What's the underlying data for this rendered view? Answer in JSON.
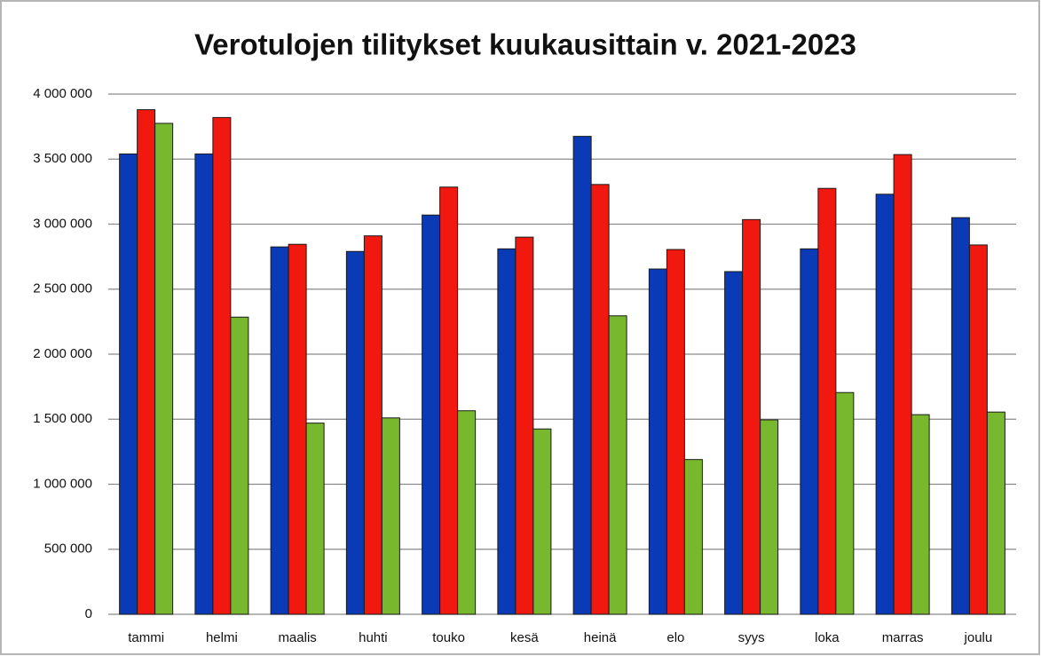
{
  "chart_data": {
    "type": "bar",
    "title": "Verotulojen tilitykset kuukausittain v. 2021-2023",
    "categories": [
      "tammi",
      "helmi",
      "maalis",
      "huhti",
      "touko",
      "kesä",
      "heinä",
      "elo",
      "syys",
      "loka",
      "marras",
      "joulu"
    ],
    "series": [
      {
        "color": "#0a3ab5",
        "values": [
          3540000,
          3540000,
          2825000,
          2790000,
          3070000,
          2810000,
          3675000,
          2655000,
          2635000,
          2810000,
          3230000,
          3050000
        ]
      },
      {
        "color": "#f0180f",
        "values": [
          3880000,
          3820000,
          2845000,
          2910000,
          3285000,
          2900000,
          3305000,
          2805000,
          3035000,
          3275000,
          3535000,
          2840000
        ]
      },
      {
        "color": "#77b82e",
        "values": [
          3775000,
          2285000,
          1470000,
          1510000,
          1565000,
          1425000,
          2295000,
          1190000,
          1495000,
          1705000,
          1535000,
          1555000
        ]
      }
    ],
    "ylim": [
      0,
      4000000
    ],
    "yticks": [
      0,
      {
        "value": 500000,
        "label": "500 000"
      },
      {
        "value": 1000000,
        "label": "1 000 000"
      },
      {
        "value": 1500000,
        "label": "1 500 000"
      },
      {
        "value": 2000000,
        "label": "2 000 000"
      },
      {
        "value": 2500000,
        "label": "2 500 000"
      },
      {
        "value": 3000000,
        "label": "3 000 000"
      },
      {
        "value": 3500000,
        "label": "3 500 000"
      },
      {
        "value": 4000000,
        "label": "4 000 000"
      }
    ],
    "grid": true
  }
}
